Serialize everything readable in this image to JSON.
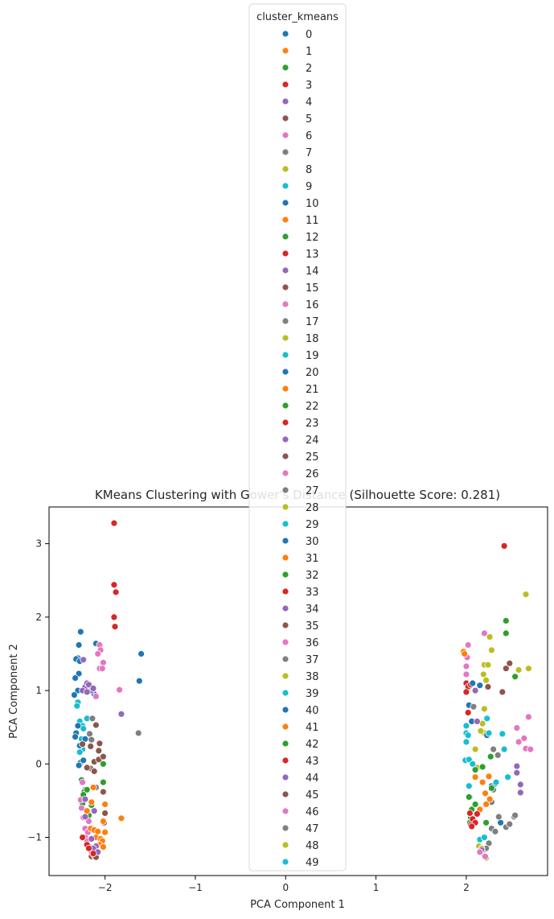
{
  "chart_data": {
    "type": "scatter",
    "title": "KMeans Clustering with Gower's Distance (Silhouette Score: 0.281)",
    "xlabel": "PCA Component 1",
    "ylabel": "PCA Component 2",
    "xlim": [
      -2.62,
      2.9
    ],
    "ylim": [
      -1.52,
      3.5
    ],
    "x_ticks": [
      -2,
      -1,
      0,
      1,
      2
    ],
    "y_ticks": [
      -1,
      0,
      1,
      2,
      3
    ],
    "grid": false,
    "legend": {
      "title": "cluster_kmeans",
      "placement": "top-center",
      "labels": [
        "0",
        "1",
        "2",
        "3",
        "4",
        "5",
        "6",
        "7",
        "8",
        "9",
        "10",
        "11",
        "12",
        "13",
        "14",
        "15",
        "16",
        "17",
        "18",
        "19",
        "20",
        "21",
        "22",
        "23",
        "24",
        "25",
        "26",
        "27",
        "28",
        "29",
        "30",
        "31",
        "32",
        "33",
        "34",
        "35",
        "36",
        "37",
        "38",
        "39",
        "40",
        "41",
        "42",
        "43",
        "44",
        "45",
        "46",
        "47",
        "48",
        "49"
      ]
    },
    "palette": [
      "#1f77b4",
      "#ff7f0e",
      "#2ca02c",
      "#d62728",
      "#9467bd",
      "#8c564b",
      "#e377c2",
      "#7f7f7f",
      "#bcbd22",
      "#17becf"
    ],
    "points": [
      [
        -1.9,
        3.28,
        3
      ],
      [
        -1.9,
        2.44,
        3
      ],
      [
        -1.88,
        2.34,
        3
      ],
      [
        -1.9,
        2.0,
        3
      ],
      [
        -1.89,
        1.87,
        3
      ],
      [
        -2.27,
        1.8,
        0
      ],
      [
        -2.29,
        1.62,
        0
      ],
      [
        -2.3,
        1.44,
        0
      ],
      [
        -2.32,
        1.43,
        0
      ],
      [
        -2.28,
        1.4,
        0
      ],
      [
        -2.29,
        1.23,
        0
      ],
      [
        -2.33,
        1.17,
        0
      ],
      [
        -2.3,
        1.0,
        0
      ],
      [
        -2.34,
        0.94,
        0
      ],
      [
        -2.12,
        0.95,
        0
      ],
      [
        -2.1,
        1.64,
        0
      ],
      [
        -1.6,
        1.5,
        0
      ],
      [
        -1.62,
        1.13,
        0
      ],
      [
        -2.24,
        1.42,
        4
      ],
      [
        -2.22,
        1.05,
        4
      ],
      [
        -2.2,
        1.1,
        4
      ],
      [
        -2.25,
        1.0,
        4
      ],
      [
        -2.18,
        1.08,
        4
      ],
      [
        -2.15,
        1.0,
        4
      ],
      [
        -2.13,
        1.03,
        4
      ],
      [
        -2.2,
        0.98,
        4
      ],
      [
        -1.82,
        0.68,
        4
      ],
      [
        -2.06,
        1.62,
        6
      ],
      [
        -2.05,
        1.55,
        6
      ],
      [
        -2.08,
        1.5,
        6
      ],
      [
        -2.02,
        1.38,
        6
      ],
      [
        -2.06,
        1.3,
        6
      ],
      [
        -2.03,
        1.3,
        6
      ],
      [
        -1.84,
        1.01,
        6
      ],
      [
        -2.1,
        0.92,
        6
      ],
      [
        -2.3,
        0.84,
        9
      ],
      [
        -2.31,
        0.79,
        9
      ],
      [
        -2.28,
        0.58,
        9
      ],
      [
        -2.25,
        0.52,
        9
      ],
      [
        -2.2,
        0.62,
        9
      ],
      [
        -2.24,
        0.48,
        9
      ],
      [
        -2.26,
        0.34,
        9
      ],
      [
        -2.25,
        0.2,
        9
      ],
      [
        -2.28,
        0.16,
        9
      ],
      [
        -2.3,
        0.52,
        10
      ],
      [
        -2.32,
        0.42,
        10
      ],
      [
        -2.33,
        0.37,
        10
      ],
      [
        -2.22,
        0.34,
        10
      ],
      [
        -2.28,
        0.25,
        10
      ],
      [
        -2.27,
        0.02,
        10
      ],
      [
        -2.24,
        0.05,
        10
      ],
      [
        -2.29,
        -0.02,
        10
      ],
      [
        -2.14,
        0.62,
        7
      ],
      [
        -2.17,
        0.41,
        7
      ],
      [
        -2.15,
        0.33,
        7
      ],
      [
        -1.63,
        0.42,
        7
      ],
      [
        -2.16,
        -0.06,
        7
      ],
      [
        -2.22,
        -0.35,
        7
      ],
      [
        -2.1,
        -0.32,
        7
      ],
      [
        -2.1,
        0.53,
        5
      ],
      [
        -2.25,
        0.27,
        5
      ],
      [
        -2.16,
        0.24,
        5
      ],
      [
        -2.06,
        0.28,
        5
      ],
      [
        -2.07,
        0.18,
        5
      ],
      [
        -2.12,
        0.03,
        5
      ],
      [
        -2.07,
        0.06,
        5
      ],
      [
        -2.02,
        0.1,
        5
      ],
      [
        -2.2,
        -0.05,
        5
      ],
      [
        -2.12,
        -0.1,
        5
      ],
      [
        -2.02,
        -0.38,
        5
      ],
      [
        -2.0,
        -0.67,
        5
      ],
      [
        -2.01,
        -0.8,
        5
      ],
      [
        -2.15,
        -1.26,
        5
      ],
      [
        -2.12,
        -1.25,
        5
      ],
      [
        -2.1,
        -1.27,
        5
      ],
      [
        -2.26,
        -0.22,
        2
      ],
      [
        -2.23,
        -0.38,
        2
      ],
      [
        -2.2,
        -0.35,
        2
      ],
      [
        -2.24,
        -0.42,
        2
      ],
      [
        -2.25,
        -0.54,
        2
      ],
      [
        -2.15,
        -0.56,
        2
      ],
      [
        -2.02,
        -0.25,
        2
      ],
      [
        -2.02,
        0.0,
        2
      ],
      [
        -2.18,
        -0.7,
        2
      ],
      [
        -2.25,
        -0.25,
        6
      ],
      [
        -2.27,
        -0.49,
        6
      ],
      [
        -2.26,
        -0.6,
        6
      ],
      [
        -2.24,
        -0.73,
        6
      ],
      [
        -2.18,
        -0.78,
        6
      ],
      [
        -2.22,
        -0.88,
        6
      ],
      [
        -2.19,
        -0.93,
        6
      ],
      [
        -2.22,
        -1.0,
        6
      ],
      [
        -2.2,
        -1.05,
        6
      ],
      [
        -2.17,
        -1.13,
        6
      ],
      [
        -2.15,
        -1.2,
        6
      ],
      [
        -2.13,
        -0.32,
        1
      ],
      [
        -2.15,
        -0.52,
        1
      ],
      [
        -2.2,
        -0.64,
        1
      ],
      [
        -2.0,
        -0.55,
        1
      ],
      [
        -2.02,
        -0.78,
        1
      ],
      [
        -2.16,
        -0.88,
        1
      ],
      [
        -2.12,
        -0.9,
        1
      ],
      [
        -2.08,
        -0.92,
        1
      ],
      [
        -2.1,
        -1.0,
        1
      ],
      [
        -2.05,
        -1.02,
        1
      ],
      [
        -2.03,
        -1.05,
        1
      ],
      [
        -2.0,
        -0.93,
        1
      ],
      [
        -2.06,
        -1.1,
        1
      ],
      [
        -2.02,
        -1.13,
        1
      ],
      [
        -1.82,
        -0.74,
        1
      ],
      [
        -2.22,
        -0.48,
        4
      ],
      [
        -2.22,
        -0.72,
        4
      ],
      [
        -2.12,
        -0.64,
        4
      ],
      [
        -2.15,
        -1.02,
        4
      ],
      [
        -2.1,
        -1.12,
        4
      ],
      [
        -2.13,
        -1.15,
        4
      ],
      [
        -2.08,
        -1.2,
        4
      ],
      [
        -2.25,
        -1.0,
        3
      ],
      [
        -2.2,
        -1.1,
        3
      ],
      [
        -2.18,
        -1.15,
        3
      ],
      [
        -2.13,
        -1.22,
        3
      ],
      [
        2.42,
        2.97,
        3
      ],
      [
        2.66,
        2.31,
        8
      ],
      [
        2.44,
        1.95,
        2
      ],
      [
        2.44,
        1.78,
        2
      ],
      [
        2.54,
        1.19,
        2
      ],
      [
        2.2,
        1.78,
        6
      ],
      [
        2.02,
        1.62,
        6
      ],
      [
        2.01,
        1.45,
        6
      ],
      [
        2.0,
        1.33,
        6
      ],
      [
        2.0,
        1.22,
        6
      ],
      [
        2.69,
        0.64,
        6
      ],
      [
        2.56,
        0.49,
        6
      ],
      [
        2.58,
        0.3,
        6
      ],
      [
        2.64,
        0.35,
        6
      ],
      [
        2.66,
        0.21,
        6
      ],
      [
        2.71,
        0.2,
        6
      ],
      [
        1.97,
        1.53,
        1
      ],
      [
        1.98,
        1.5,
        1
      ],
      [
        2.26,
        1.73,
        8
      ],
      [
        2.28,
        1.55,
        8
      ],
      [
        2.2,
        1.35,
        8
      ],
      [
        2.24,
        1.35,
        8
      ],
      [
        2.19,
        1.22,
        8
      ],
      [
        2.22,
        1.14,
        8
      ],
      [
        2.69,
        1.3,
        8
      ],
      [
        2.58,
        1.28,
        8
      ],
      [
        2.2,
        0.75,
        8
      ],
      [
        2.18,
        0.55,
        8
      ],
      [
        2.2,
        0.42,
        8
      ],
      [
        2.16,
        0.45,
        8
      ],
      [
        2.1,
        0.2,
        8
      ],
      [
        2.12,
        -0.05,
        8
      ],
      [
        2.0,
        1.1,
        3
      ],
      [
        2.02,
        1.05,
        3
      ],
      [
        2.05,
        1.08,
        3
      ],
      [
        2.0,
        0.98,
        3
      ],
      [
        2.02,
        0.7,
        3
      ],
      [
        2.15,
        1.07,
        0
      ],
      [
        2.07,
        1.1,
        0
      ],
      [
        2.03,
        0.8,
        0
      ],
      [
        2.06,
        0.58,
        0
      ],
      [
        2.23,
        0.39,
        0
      ],
      [
        2.28,
        -0.3,
        0
      ],
      [
        2.32,
        -0.27,
        0
      ],
      [
        2.38,
        -0.8,
        0
      ],
      [
        2.24,
        1.05,
        5
      ],
      [
        2.48,
        1.37,
        5
      ],
      [
        2.44,
        1.3,
        5
      ],
      [
        2.4,
        0.98,
        5
      ],
      [
        2.1,
        1.0,
        4
      ],
      [
        2.12,
        0.58,
        4
      ],
      [
        2.56,
        -0.03,
        4
      ],
      [
        2.56,
        -0.12,
        4
      ],
      [
        2.6,
        -0.28,
        4
      ],
      [
        2.6,
        -0.39,
        4
      ],
      [
        2.08,
        0.78,
        7
      ],
      [
        2.3,
        0.2,
        7
      ],
      [
        2.35,
        0.12,
        7
      ],
      [
        2.3,
        -0.35,
        7
      ],
      [
        2.28,
        -0.52,
        7
      ],
      [
        2.36,
        -0.72,
        7
      ],
      [
        2.28,
        -0.88,
        7
      ],
      [
        2.32,
        -0.92,
        7
      ],
      [
        2.44,
        -0.86,
        7
      ],
      [
        2.48,
        -0.82,
        7
      ],
      [
        2.53,
        -0.72,
        7
      ],
      [
        2.54,
        -0.7,
        7
      ],
      [
        2.25,
        -1.08,
        7
      ],
      [
        2.22,
        -1.15,
        7
      ],
      [
        2.18,
        -1.2,
        7
      ],
      [
        2.0,
        0.52,
        9
      ],
      [
        2.0,
        0.42,
        9
      ],
      [
        2.02,
        0.39,
        9
      ],
      [
        2.0,
        0.3,
        9
      ],
      [
        1.99,
        0.05,
        9
      ],
      [
        2.03,
        0.06,
        9
      ],
      [
        2.07,
        0.0,
        9
      ],
      [
        2.23,
        0.62,
        9
      ],
      [
        2.25,
        0.42,
        9
      ],
      [
        2.4,
        0.41,
        9
      ],
      [
        2.42,
        0.2,
        9
      ],
      [
        2.46,
        -0.18,
        9
      ],
      [
        2.33,
        -0.25,
        9
      ],
      [
        2.03,
        -0.3,
        9
      ],
      [
        2.04,
        -0.45,
        9
      ],
      [
        2.15,
        -1.03,
        9
      ],
      [
        2.2,
        -1.0,
        9
      ],
      [
        2.03,
        -0.45,
        2
      ],
      [
        2.1,
        -0.08,
        2
      ],
      [
        2.18,
        -0.04,
        2
      ],
      [
        2.27,
        0.1,
        2
      ],
      [
        2.28,
        -0.33,
        2
      ],
      [
        2.06,
        -0.62,
        2
      ],
      [
        2.05,
        -0.73,
        2
      ],
      [
        2.04,
        -0.8,
        2
      ],
      [
        2.1,
        -0.55,
        2
      ],
      [
        2.22,
        -0.8,
        2
      ],
      [
        2.1,
        -0.18,
        1
      ],
      [
        2.18,
        -0.25,
        1
      ],
      [
        2.25,
        -0.17,
        1
      ],
      [
        2.21,
        -0.4,
        1
      ],
      [
        2.26,
        -0.48,
        1
      ],
      [
        2.22,
        -0.55,
        1
      ],
      [
        2.15,
        -0.62,
        1
      ],
      [
        2.04,
        -0.67,
        3
      ],
      [
        2.07,
        -0.75,
        3
      ],
      [
        2.05,
        -0.83,
        3
      ],
      [
        2.1,
        -0.8,
        3
      ],
      [
        2.12,
        -0.68,
        3
      ],
      [
        2.06,
        -0.85,
        3
      ],
      [
        2.15,
        -1.2,
        3
      ],
      [
        2.14,
        -1.12,
        8
      ],
      [
        2.17,
        -1.15,
        8
      ],
      [
        2.22,
        -1.28,
        8
      ],
      [
        2.17,
        -1.17,
        4
      ],
      [
        2.2,
        -1.25,
        4
      ],
      [
        2.15,
        -1.2,
        6
      ],
      [
        2.21,
        -1.26,
        6
      ]
    ]
  }
}
